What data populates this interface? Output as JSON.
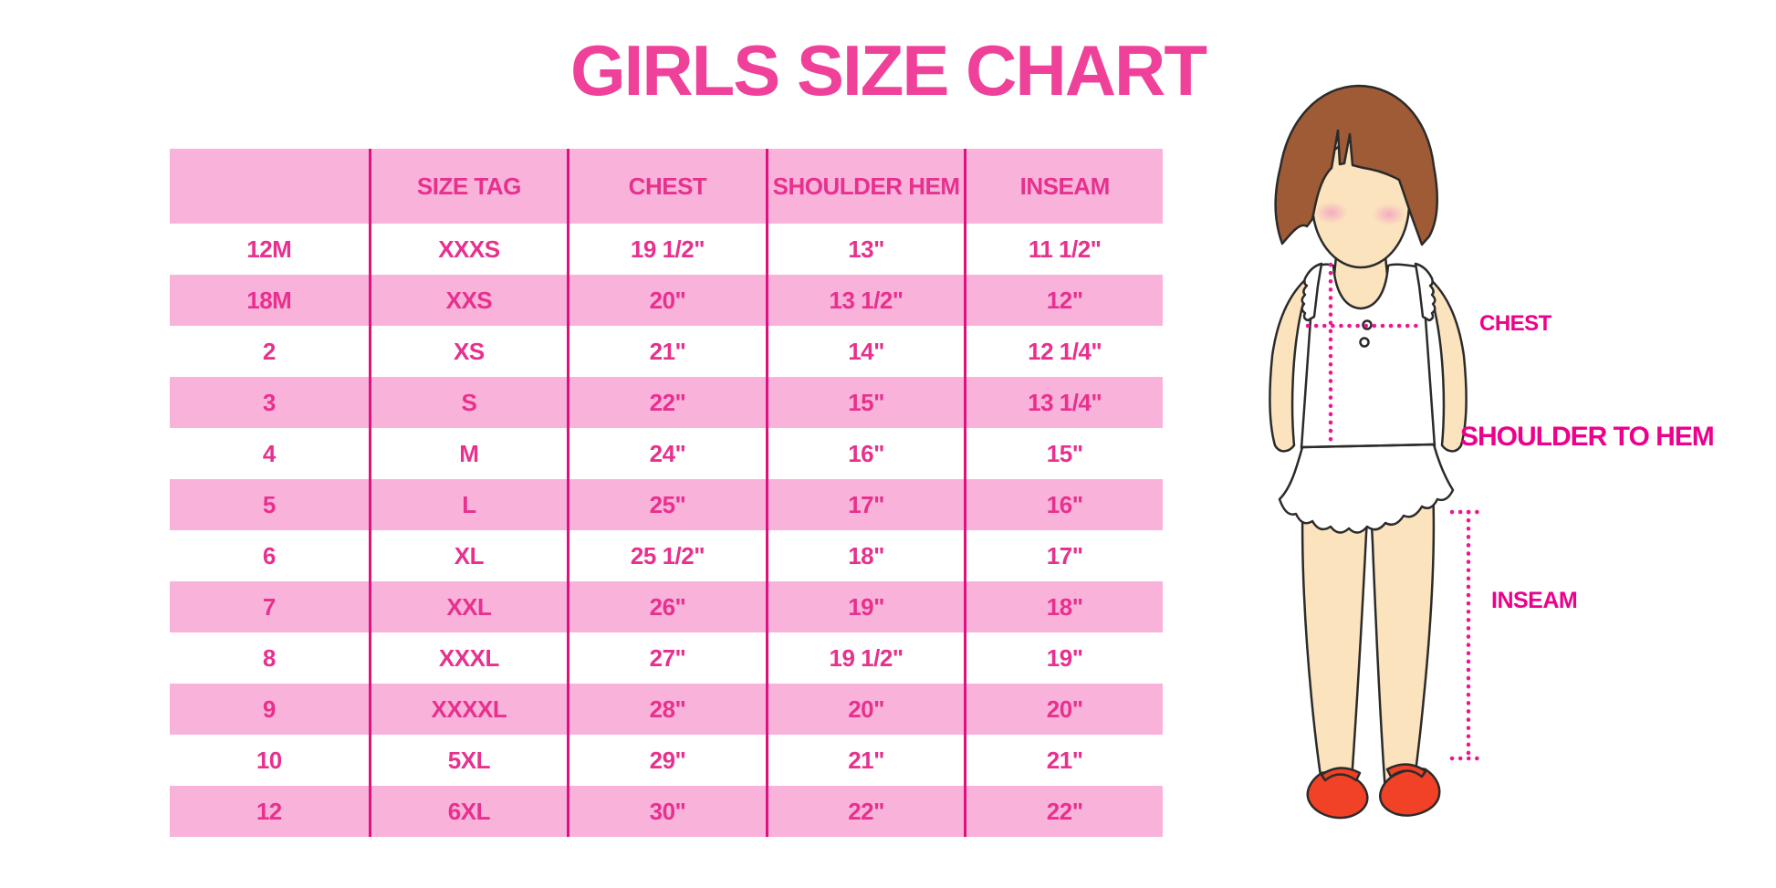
{
  "page": {
    "title": "GIRLS SIZE CHART"
  },
  "table": {
    "headers": [
      "",
      "SIZE TAG",
      "CHEST",
      "SHOULDER HEM",
      "INSEAM"
    ],
    "rows": [
      [
        "12M",
        "XXXS",
        "19 1/2\"",
        "13\"",
        "11 1/2\""
      ],
      [
        "18M",
        "XXS",
        "20\"",
        "13 1/2\"",
        "12\""
      ],
      [
        "2",
        "XS",
        "21\"",
        "14\"",
        "12 1/4\""
      ],
      [
        "3",
        "S",
        "22\"",
        "15\"",
        "13 1/4\""
      ],
      [
        "4",
        "M",
        "24\"",
        "16\"",
        "15\""
      ],
      [
        "5",
        "L",
        "25\"",
        "17\"",
        "16\""
      ],
      [
        "6",
        "XL",
        "25 1/2\"",
        "18\"",
        "17\""
      ],
      [
        "7",
        "XXL",
        "26\"",
        "19\"",
        "18\""
      ],
      [
        "8",
        "XXXL",
        "27\"",
        "19 1/2\"",
        "19\""
      ],
      [
        "9",
        "XXXXL",
        "28\"",
        "20\"",
        "20\""
      ],
      [
        "10",
        "5XL",
        "29\"",
        "21\"",
        "21\""
      ],
      [
        "12",
        "6XL",
        "30\"",
        "22\"",
        "22\""
      ]
    ]
  },
  "diagram": {
    "labels": {
      "chest": "CHEST",
      "shoulder_to_hem": "SHOULDER TO HEM",
      "inseam": "INSEAM"
    }
  },
  "colors": {
    "pink_row": "#F9B3DB",
    "divider": "#E0107E",
    "table_text": "#E8308E",
    "title_text": "#EF4199",
    "label_text": "#EC008C",
    "dot_line": "#ED1690",
    "hair": "#9E5B36",
    "skin": "#FBE3BD",
    "blush": "#F3A9C1",
    "shoe": "#F14126",
    "outline": "#2B2B2B"
  }
}
